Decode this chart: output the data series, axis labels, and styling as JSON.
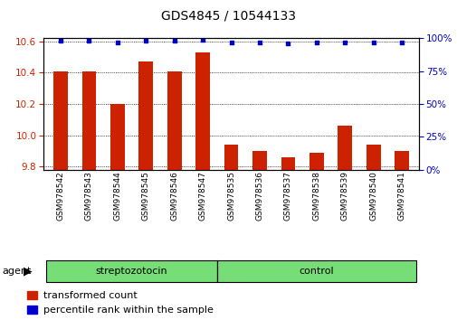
{
  "title": "GDS4845 / 10544133",
  "samples": [
    "GSM978542",
    "GSM978543",
    "GSM978544",
    "GSM978545",
    "GSM978546",
    "GSM978547",
    "GSM978535",
    "GSM978536",
    "GSM978537",
    "GSM978538",
    "GSM978539",
    "GSM978540",
    "GSM978541"
  ],
  "bar_values": [
    10.41,
    10.41,
    10.2,
    10.47,
    10.41,
    10.53,
    9.94,
    9.9,
    9.86,
    9.89,
    10.06,
    9.94,
    9.9
  ],
  "percentile_values": [
    98,
    98,
    97,
    98,
    98,
    99,
    97,
    97,
    96,
    97,
    97,
    97,
    97
  ],
  "bar_color": "#cc2200",
  "dot_color": "#0000cc",
  "ylim_left": [
    9.78,
    10.62
  ],
  "ylim_right": [
    0,
    100
  ],
  "yticks_left": [
    9.8,
    10.0,
    10.2,
    10.4,
    10.6
  ],
  "yticks_right": [
    0,
    25,
    50,
    75,
    100
  ],
  "groups": [
    {
      "label": "streptozotocin",
      "start": 0,
      "end": 6
    },
    {
      "label": "control",
      "start": 6,
      "end": 13
    }
  ],
  "group_color": "#77dd77",
  "group_row_label": "agent",
  "legend_bar_label": "transformed count",
  "legend_dot_label": "percentile rank within the sample",
  "background_color": "#ffffff",
  "tick_label_color_left": "#cc2200",
  "tick_label_color_right": "#0000cc",
  "title_fontsize": 10,
  "bar_width": 0.5
}
